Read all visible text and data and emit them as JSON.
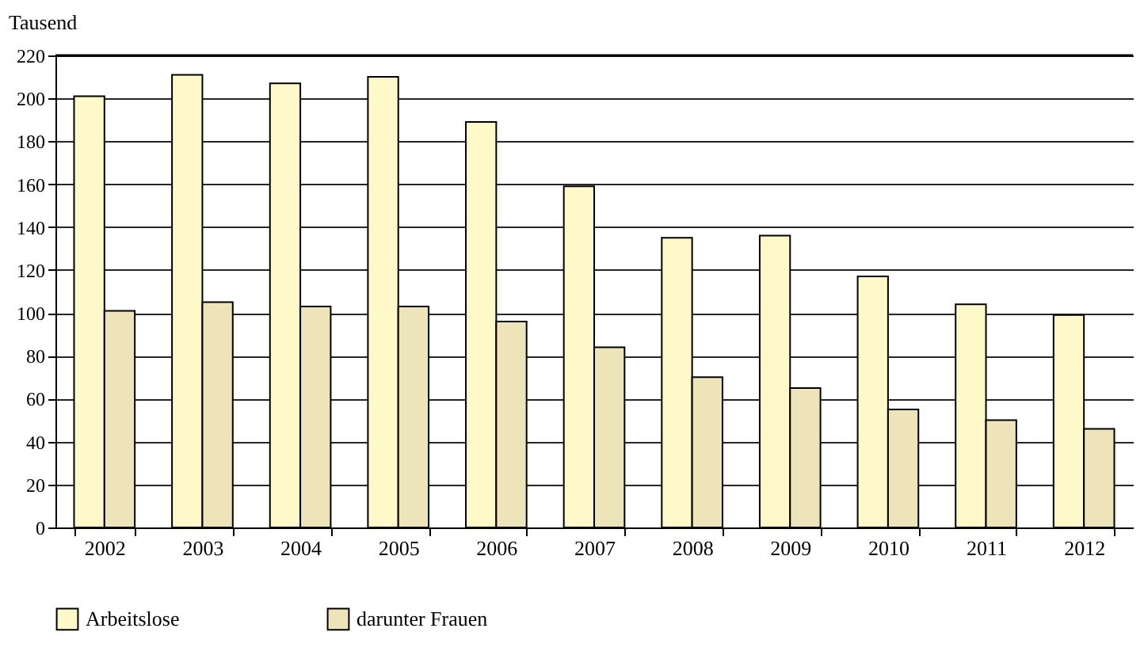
{
  "chart_data": {
    "type": "bar",
    "ylabel": "Tausend",
    "categories": [
      "2002",
      "2003",
      "2004",
      "2005",
      "2006",
      "2007",
      "2008",
      "2009",
      "2010",
      "2011",
      "2012"
    ],
    "series": [
      {
        "name": "Arbeitslose",
        "color": "#fff8c8",
        "values": [
          201,
          211,
          207,
          210,
          189,
          159,
          135,
          136,
          117,
          104,
          99
        ]
      },
      {
        "name": "darunter Frauen",
        "color": "#ede5b9",
        "values": [
          101,
          105,
          103,
          103,
          96,
          84,
          70,
          65,
          55,
          50,
          46
        ]
      }
    ],
    "ylim": [
      0,
      220
    ],
    "yticks": [
      0,
      20,
      40,
      60,
      80,
      100,
      120,
      140,
      160,
      180,
      200,
      220
    ],
    "grid": "y",
    "legend": "bottom"
  }
}
